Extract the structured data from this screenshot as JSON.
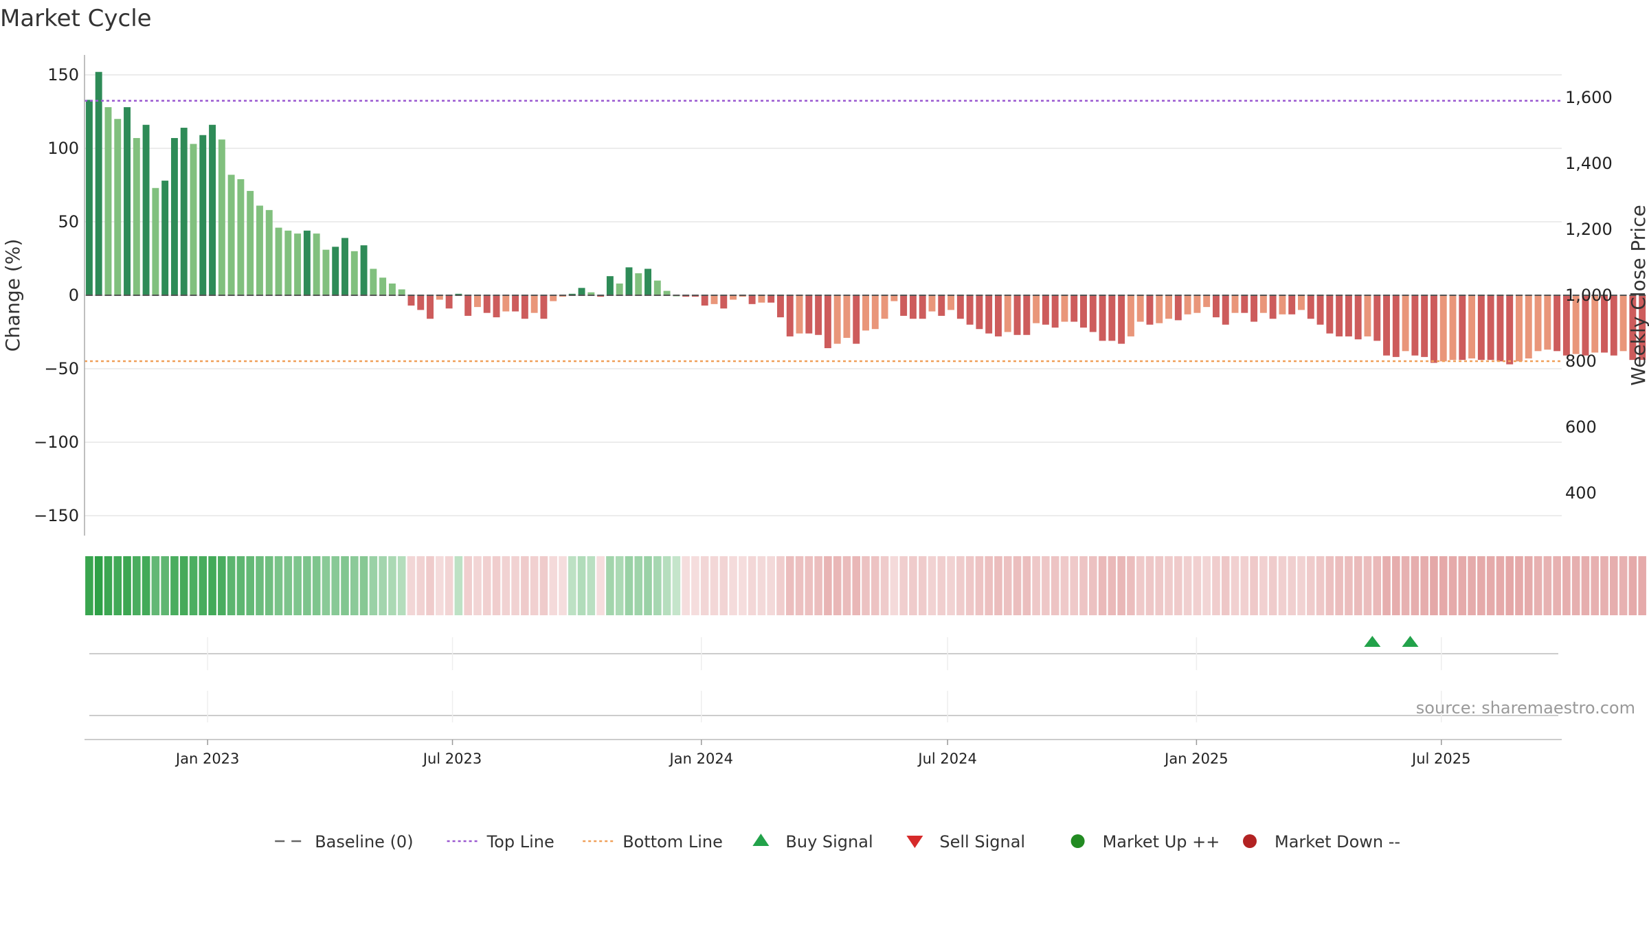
{
  "chart_data": {
    "type": "bar",
    "title": "Market Cycle",
    "ylabel": "Change (%)",
    "y2label": "Weekly Close Price",
    "ylim": [
      -165,
      160
    ],
    "y2lim": [
      330,
      1710
    ],
    "yticks": [
      150,
      100,
      50,
      0,
      -50,
      -100,
      -150
    ],
    "yticklabels": [
      "150",
      "100",
      "50",
      "0",
      "−50",
      "−100",
      "−150"
    ],
    "y2ticks": [
      1600,
      1400,
      1200,
      1000,
      800,
      600,
      400
    ],
    "y2ticklabels": [
      "1,600",
      "1,400",
      "1,200",
      "1,000",
      "800",
      "600",
      "400"
    ],
    "xlim": [
      "2022-10-02",
      "2025-09-28"
    ],
    "xticks": [
      "2023-01-01",
      "2023-07-01",
      "2024-01-01",
      "2024-07-01",
      "2025-01-01",
      "2025-07-01"
    ],
    "xticklabels": [
      "Jan 2023",
      "Jul 2023",
      "Jan 2024",
      "Jul 2024",
      "Jan 2025",
      "Jul 2025"
    ],
    "start_week": "2022-10-02",
    "top_line": 1590,
    "bottom_line": 800,
    "values": [
      133,
      152,
      128,
      120,
      128,
      107,
      116,
      73,
      78,
      107,
      114,
      103,
      109,
      116,
      106,
      82,
      79,
      71,
      61,
      58,
      46,
      44,
      42,
      44,
      42,
      31,
      33,
      39,
      30,
      34,
      18,
      12,
      8,
      4,
      -7,
      -10,
      -16,
      -3,
      -9,
      1,
      -14,
      -8,
      -12,
      -15,
      -11,
      -11,
      -16,
      -12,
      -16,
      -4,
      -1,
      1,
      5,
      2,
      -1,
      13,
      8,
      19,
      15,
      18,
      10,
      3,
      0,
      -1,
      -1,
      -7,
      -6,
      -9,
      -3,
      -1,
      -6,
      -5,
      -5,
      -15,
      -28,
      -26,
      -26,
      -27,
      -36,
      -33,
      -29,
      -33,
      -24,
      -23,
      -16,
      -4,
      -14,
      -16,
      -16,
      -11,
      -14,
      -10,
      -16,
      -20,
      -23,
      -26,
      -28,
      -25,
      -27,
      -27,
      -19,
      -20,
      -22,
      -18,
      -18,
      -22,
      -25,
      -31,
      -31,
      -33,
      -28,
      -18,
      -20,
      -19,
      -16,
      -17,
      -13,
      -12,
      -8,
      -15,
      -20,
      -12,
      -12,
      -18,
      -12,
      -16,
      -13,
      -13,
      -10,
      -16,
      -20,
      -26,
      -28,
      -28,
      -30,
      -28,
      -31,
      -41,
      -42,
      -38,
      -41,
      -42,
      -46,
      -45,
      -44,
      -44,
      -43,
      -44,
      -44,
      -45,
      -47,
      -45,
      -43,
      -38,
      -37,
      -38,
      -41,
      -40,
      -41,
      -39,
      -39,
      -41,
      -38,
      -44,
      -44
    ],
    "buy_signals": [
      "2025-05-11",
      "2025-06-08"
    ],
    "sell_signals": [],
    "source": "source: sharemaestro.com",
    "legend": {
      "position": "bottom-center",
      "items": [
        {
          "label": "Baseline (0)",
          "marker": "dash-line",
          "color": "#666666"
        },
        {
          "label": "Top Line",
          "marker": "dotted-line",
          "color": "#9b59d0"
        },
        {
          "label": "Bottom Line",
          "marker": "dotted-line",
          "color": "#f0a05a"
        },
        {
          "label": "Buy Signal",
          "marker": "triangle-up",
          "color": "#22a24a"
        },
        {
          "label": "Sell Signal",
          "marker": "triangle-down",
          "color": "#d62a2a"
        },
        {
          "label": "Market Up ++",
          "marker": "circle",
          "color": "#228b22"
        },
        {
          "label": "Market Down --",
          "marker": "circle",
          "color": "#b22222"
        }
      ]
    },
    "colors": {
      "strong_up": "#2e8b57",
      "light_up": "#81c07e",
      "strong_down": "#cd5c5c",
      "light_down": "#e9967a",
      "top_line": "#9b59d0",
      "bottom_line": "#f0a05a",
      "grid": "#e6e6e6"
    },
    "grid": true
  }
}
